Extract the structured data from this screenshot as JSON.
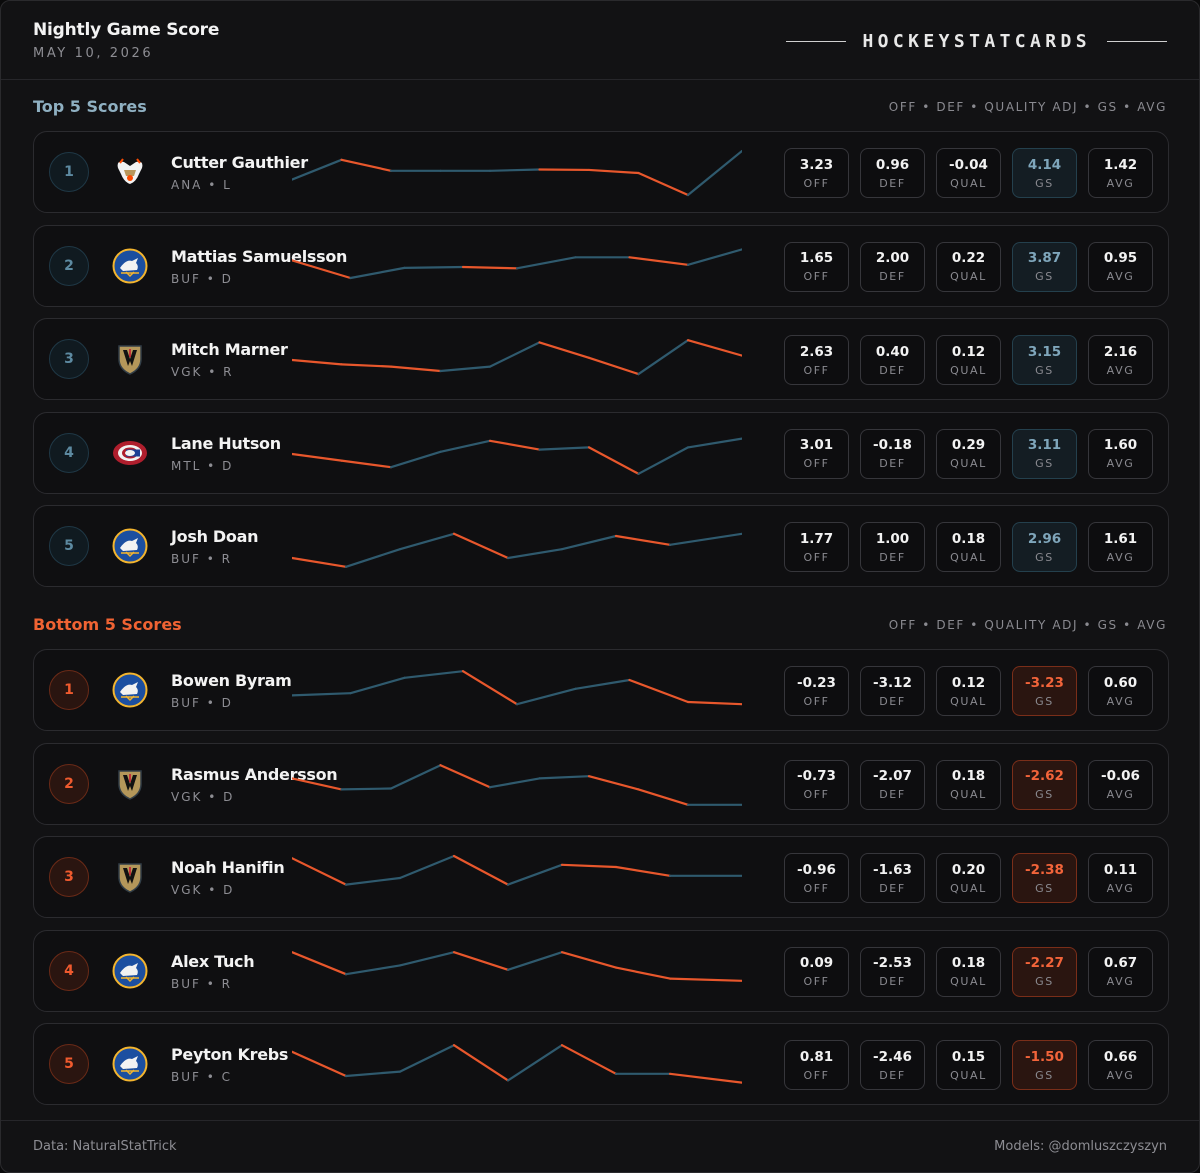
{
  "header": {
    "title": "Nightly Game Score",
    "date": "MAY 10, 2026",
    "brand": "HOCKEYSTATCARDS"
  },
  "colors": {
    "positive": "#2f5a6e",
    "negative": "#e8572c"
  },
  "top": {
    "title": "Top 5 Scores",
    "columns": "OFF • DEF • QUALITY ADJ • GS • AVG",
    "players": [
      {
        "rank": "1",
        "name": "Cutter Gauthier",
        "meta": "ANA • L",
        "logo": "ana-logo-icon",
        "off": "3.23",
        "def": "0.96",
        "qual": "-0.04",
        "gs": "4.14",
        "avg": "1.42",
        "trend": [
          [
            0,
            0.35
          ],
          [
            0.11,
            0.8
          ],
          [
            0.22,
            0.55
          ],
          [
            0.33,
            0.55
          ],
          [
            0.44,
            0.55
          ],
          [
            0.55,
            0.58
          ],
          [
            0.66,
            0.57
          ],
          [
            0.77,
            0.5
          ],
          [
            0.88,
            0.0
          ],
          [
            1,
            1.0
          ]
        ]
      },
      {
        "rank": "2",
        "name": "Mattias Samuelsson",
        "meta": "BUF • D",
        "logo": "buf-logo-icon",
        "off": "1.65",
        "def": "2.00",
        "qual": "0.22",
        "gs": "3.87",
        "avg": "0.95",
        "trend": [
          [
            0,
            0.65
          ],
          [
            0.13,
            0.25
          ],
          [
            0.25,
            0.48
          ],
          [
            0.38,
            0.5
          ],
          [
            0.5,
            0.47
          ],
          [
            0.63,
            0.72
          ],
          [
            0.75,
            0.72
          ],
          [
            0.88,
            0.55
          ],
          [
            1,
            0.9
          ]
        ]
      },
      {
        "rank": "3",
        "name": "Mitch Marner",
        "meta": "VGK • R",
        "logo": "vgk-logo-icon",
        "off": "2.63",
        "def": "0.40",
        "qual": "0.12",
        "gs": "3.15",
        "avg": "2.16",
        "trend": [
          [
            0,
            0.5
          ],
          [
            0.11,
            0.4
          ],
          [
            0.22,
            0.35
          ],
          [
            0.33,
            0.25
          ],
          [
            0.44,
            0.35
          ],
          [
            0.55,
            0.9
          ],
          [
            0.66,
            0.55
          ],
          [
            0.77,
            0.18
          ],
          [
            0.88,
            0.95
          ],
          [
            1,
            0.6
          ]
        ]
      },
      {
        "rank": "4",
        "name": "Lane Hutson",
        "meta": "MTL • D",
        "logo": "mtl-logo-icon",
        "off": "3.01",
        "def": "-0.18",
        "qual": "0.29",
        "gs": "3.11",
        "avg": "1.60",
        "trend": [
          [
            0,
            0.5
          ],
          [
            0.11,
            0.35
          ],
          [
            0.22,
            0.2
          ],
          [
            0.33,
            0.55
          ],
          [
            0.44,
            0.8
          ],
          [
            0.55,
            0.6
          ],
          [
            0.66,
            0.65
          ],
          [
            0.77,
            0.05
          ],
          [
            0.88,
            0.65
          ],
          [
            1,
            0.85
          ]
        ]
      },
      {
        "rank": "5",
        "name": "Josh Doan",
        "meta": "BUF • R",
        "logo": "buf-logo-icon",
        "off": "1.77",
        "def": "1.00",
        "qual": "0.18",
        "gs": "2.96",
        "avg": "1.61",
        "trend": [
          [
            0,
            0.25
          ],
          [
            0.12,
            0.05
          ],
          [
            0.24,
            0.45
          ],
          [
            0.36,
            0.8
          ],
          [
            0.48,
            0.25
          ],
          [
            0.6,
            0.45
          ],
          [
            0.72,
            0.75
          ],
          [
            0.84,
            0.55
          ],
          [
            1,
            0.8
          ]
        ]
      }
    ]
  },
  "bottom": {
    "title": "Bottom 5 Scores",
    "columns": "OFF • DEF • QUALITY ADJ • GS • AVG",
    "players": [
      {
        "rank": "1",
        "name": "Bowen Byram",
        "meta": "BUF • D",
        "logo": "buf-logo-icon",
        "off": "-0.23",
        "def": "-3.12",
        "qual": "0.12",
        "gs": "-3.23",
        "avg": "0.60",
        "trend": [
          [
            0,
            0.4
          ],
          [
            0.13,
            0.45
          ],
          [
            0.25,
            0.8
          ],
          [
            0.38,
            0.95
          ],
          [
            0.5,
            0.2
          ],
          [
            0.63,
            0.55
          ],
          [
            0.75,
            0.75
          ],
          [
            0.88,
            0.25
          ],
          [
            1,
            0.2
          ]
        ]
      },
      {
        "rank": "2",
        "name": "Rasmus Andersson",
        "meta": "VGK • D",
        "logo": "vgk-logo-icon",
        "off": "-0.73",
        "def": "-2.07",
        "qual": "0.18",
        "gs": "-2.62",
        "avg": "-0.06",
        "trend": [
          [
            0,
            0.65
          ],
          [
            0.11,
            0.4
          ],
          [
            0.22,
            0.42
          ],
          [
            0.33,
            0.95
          ],
          [
            0.44,
            0.45
          ],
          [
            0.55,
            0.65
          ],
          [
            0.66,
            0.7
          ],
          [
            0.77,
            0.4
          ],
          [
            0.88,
            0.05
          ],
          [
            1,
            0.05
          ]
        ]
      },
      {
        "rank": "3",
        "name": "Noah Hanifin",
        "meta": "VGK • D",
        "logo": "vgk-logo-icon",
        "off": "-0.96",
        "def": "-1.63",
        "qual": "0.20",
        "gs": "-2.38",
        "avg": "0.11",
        "trend": [
          [
            0,
            0.95
          ],
          [
            0.12,
            0.35
          ],
          [
            0.24,
            0.5
          ],
          [
            0.36,
            1.0
          ],
          [
            0.48,
            0.35
          ],
          [
            0.6,
            0.8
          ],
          [
            0.72,
            0.75
          ],
          [
            0.84,
            0.55
          ],
          [
            1,
            0.55
          ]
        ]
      },
      {
        "rank": "4",
        "name": "Alex Tuch",
        "meta": "BUF • R",
        "logo": "buf-logo-icon",
        "off": "0.09",
        "def": "-2.53",
        "qual": "0.18",
        "gs": "-2.27",
        "avg": "0.67",
        "trend": [
          [
            0,
            0.95
          ],
          [
            0.12,
            0.45
          ],
          [
            0.24,
            0.65
          ],
          [
            0.36,
            0.95
          ],
          [
            0.48,
            0.55
          ],
          [
            0.6,
            0.95
          ],
          [
            0.72,
            0.6
          ],
          [
            0.84,
            0.35
          ],
          [
            1,
            0.3
          ]
        ]
      },
      {
        "rank": "5",
        "name": "Peyton Krebs",
        "meta": "BUF • C",
        "logo": "buf-logo-icon",
        "off": "0.81",
        "def": "-2.46",
        "qual": "0.15",
        "gs": "-1.50",
        "avg": "0.66",
        "trend": [
          [
            0,
            0.8
          ],
          [
            0.12,
            0.25
          ],
          [
            0.24,
            0.35
          ],
          [
            0.36,
            0.95
          ],
          [
            0.48,
            0.15
          ],
          [
            0.6,
            0.95
          ],
          [
            0.72,
            0.3
          ],
          [
            0.84,
            0.3
          ],
          [
            1,
            0.1
          ]
        ]
      }
    ]
  },
  "labels": {
    "off": "OFF",
    "def": "DEF",
    "qual": "QUAL",
    "gs": "GS",
    "avg": "AVG"
  },
  "footer": {
    "source": "Data: NaturalStatTrick",
    "credit": "Models: @domluszczyszyn"
  }
}
